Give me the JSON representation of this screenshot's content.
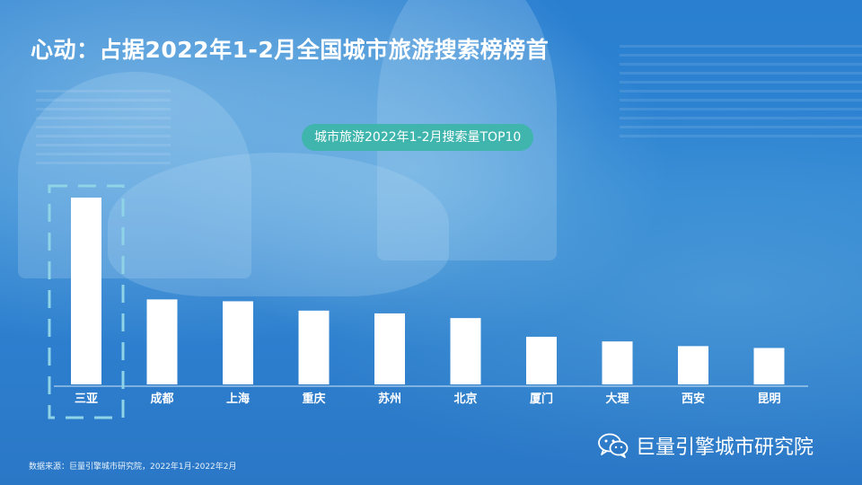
{
  "page": {
    "title": "心动：占据2022年1-2月全国城市旅游搜索榜榜首",
    "source_note": "数据来源：巨量引擎城市研究院，2022年1月-2022年2月",
    "brand_name": "巨量引擎城市研究院",
    "brand_icon": "wechat-icon"
  },
  "chart_data": {
    "type": "bar",
    "title": "城市旅游2022年1-2月搜索量TOP10",
    "categories": [
      "三亚",
      "成都",
      "上海",
      "重庆",
      "苏州",
      "北京",
      "厦门",
      "大理",
      "西安",
      "昆明"
    ],
    "values": [
      100,
      45.5,
      44.5,
      39.5,
      38,
      35.5,
      25.5,
      23,
      20.5,
      19.5
    ],
    "ylim": [
      0,
      100
    ],
    "grid": false,
    "highlight_category": "三亚",
    "colors": {
      "bar": "#ffffff",
      "baseline": "#cfe6f6",
      "highlight_box": "#8fd3e6",
      "tick_label": "#ffffff"
    }
  }
}
